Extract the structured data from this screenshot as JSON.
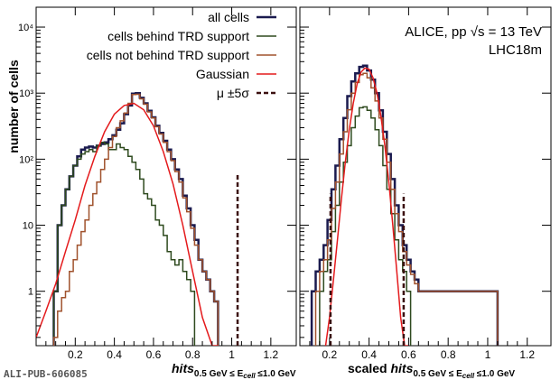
{
  "footer_id": "ALI-PUB-606085",
  "ylabel": "number of cells",
  "legend": [
    {
      "label": "all cells",
      "color": "#1a1a4e",
      "style": "solid",
      "width": 2.5
    },
    {
      "label": "cells behind TRD support",
      "color": "#2e4a1e",
      "style": "solid",
      "width": 1.5
    },
    {
      "label": "cells not behind TRD support",
      "color": "#a0522d",
      "style": "solid",
      "width": 1.5
    },
    {
      "label": "Gaussian",
      "color": "#e41a1c",
      "style": "solid",
      "width": 1.5
    },
    {
      "label": "μ ±5σ",
      "color": "#3b1010",
      "style": "dashed",
      "width": 2.5
    }
  ],
  "experiment_label": "ALICE, pp  √s = 13 TeV",
  "period_label": "LHC18m",
  "xlabel_left": {
    "main": "hits",
    "sub": "0.5 GeV ≤ E",
    "sub2": "cell",
    "sub3": " ≤1.0 GeV"
  },
  "xlabel_right": {
    "prefix": "scaled ",
    "main": "hits",
    "sub": "0.5 GeV ≤ E",
    "sub2": "cell",
    "sub3": " ≤1.0 GeV"
  },
  "y_ticks": [
    "1",
    "10",
    "10²",
    "10³",
    "10⁴"
  ],
  "chart_data": [
    {
      "type": "line",
      "panel": "left",
      "yscale": "log",
      "xlim": [
        0.0,
        1.33
      ],
      "ylim": [
        0.15,
        20000
      ],
      "xticks": [
        "0.2",
        "0.4",
        "0.6",
        "0.8",
        "1",
        "1.2"
      ],
      "xtick_values": [
        0.2,
        0.4,
        0.6,
        0.8,
        1.0,
        1.2
      ],
      "series": [
        {
          "name": "all cells",
          "x": [
            0.1,
            0.12,
            0.14,
            0.16,
            0.18,
            0.2,
            0.22,
            0.24,
            0.26,
            0.28,
            0.3,
            0.32,
            0.34,
            0.36,
            0.38,
            0.4,
            0.42,
            0.44,
            0.46,
            0.48,
            0.5,
            0.52,
            0.54,
            0.56,
            0.58,
            0.6,
            0.62,
            0.64,
            0.66,
            0.68,
            0.7,
            0.72,
            0.74,
            0.76,
            0.78,
            0.8,
            0.82,
            0.84,
            0.86,
            0.88,
            0.9,
            0.92
          ],
          "y": [
            1,
            10,
            20,
            35,
            55,
            80,
            110,
            140,
            150,
            155,
            150,
            160,
            170,
            180,
            200,
            230,
            280,
            350,
            480,
            650,
            980,
            1000,
            850,
            700,
            540,
            430,
            320,
            250,
            190,
            140,
            100,
            70,
            50,
            28,
            18,
            10,
            6,
            3,
            2,
            1.5,
            1,
            0.7
          ]
        },
        {
          "name": "cells behind TRD support",
          "x": [
            0.1,
            0.12,
            0.14,
            0.16,
            0.18,
            0.2,
            0.22,
            0.24,
            0.26,
            0.28,
            0.3,
            0.32,
            0.34,
            0.36,
            0.38,
            0.4,
            0.42,
            0.44,
            0.46,
            0.48,
            0.5,
            0.52,
            0.54,
            0.56,
            0.58,
            0.6,
            0.62,
            0.64,
            0.66,
            0.68,
            0.7,
            0.72,
            0.74,
            0.76,
            0.78,
            0.8
          ],
          "y": [
            1,
            10,
            20,
            35,
            55,
            80,
            100,
            120,
            130,
            140,
            130,
            160,
            180,
            170,
            140,
            140,
            170,
            150,
            140,
            110,
            90,
            70,
            50,
            30,
            25,
            20,
            12,
            10,
            7,
            4,
            3,
            2.5,
            3,
            2,
            1.5,
            1
          ]
        },
        {
          "name": "cells not behind TRD support",
          "x": [
            0.1,
            0.12,
            0.14,
            0.16,
            0.18,
            0.2,
            0.22,
            0.24,
            0.26,
            0.28,
            0.3,
            0.32,
            0.34,
            0.36,
            0.38,
            0.4,
            0.42,
            0.44,
            0.46,
            0.48,
            0.5,
            0.52,
            0.54,
            0.56,
            0.58,
            0.6,
            0.62,
            0.64,
            0.66,
            0.68,
            0.7,
            0.72,
            0.74,
            0.76,
            0.78,
            0.8,
            0.82,
            0.84,
            0.86,
            0.88,
            0.9,
            0.92
          ],
          "y": [
            0.2,
            0.5,
            0.8,
            1,
            2,
            3,
            5,
            8,
            12,
            20,
            30,
            45,
            70,
            100,
            150,
            220,
            300,
            380,
            500,
            700,
            950,
            960,
            820,
            680,
            520,
            420,
            310,
            240,
            180,
            130,
            95,
            65,
            45,
            26,
            16,
            9,
            5,
            3,
            2,
            1.5,
            1,
            0.7
          ]
        },
        {
          "name": "Gaussian",
          "x": [
            0.0,
            0.05,
            0.1,
            0.15,
            0.2,
            0.25,
            0.3,
            0.35,
            0.4,
            0.45,
            0.5,
            0.55,
            0.6,
            0.65,
            0.7,
            0.75,
            0.8,
            0.85,
            0.9,
            0.93
          ],
          "y": [
            0.2,
            0.5,
            1.3,
            4,
            12,
            40,
            110,
            260,
            480,
            650,
            700,
            560,
            320,
            130,
            42,
            10,
            2,
            0.4,
            0.15,
            0.1
          ]
        }
      ],
      "vlines": [
        {
          "name": "μ ±5σ",
          "x": 1.03,
          "ymax": 60
        }
      ]
    },
    {
      "type": "line",
      "panel": "right",
      "yscale": "log",
      "xlim": [
        0.05,
        1.32
      ],
      "ylim": [
        0.15,
        20000
      ],
      "xticks": [
        "0.2",
        "0.4",
        "0.6",
        "0.8",
        "1",
        "1.2"
      ],
      "xtick_values": [
        0.2,
        0.4,
        0.6,
        0.8,
        1.0,
        1.2
      ],
      "series": [
        {
          "name": "all cells",
          "x": [
            0.12,
            0.14,
            0.16,
            0.18,
            0.2,
            0.22,
            0.24,
            0.26,
            0.28,
            0.3,
            0.32,
            0.34,
            0.36,
            0.38,
            0.4,
            0.42,
            0.44,
            0.46,
            0.48,
            0.5,
            0.52,
            0.54,
            0.56,
            0.58,
            0.6,
            0.62,
            0.64,
            0.66,
            0.68,
            0.7,
            1.04
          ],
          "y": [
            1,
            2,
            3,
            5,
            12,
            35,
            80,
            200,
            420,
            900,
            1500,
            2000,
            2500,
            2600,
            2200,
            1600,
            1000,
            550,
            260,
            120,
            50,
            20,
            10,
            5,
            3,
            2,
            1.5,
            1,
            1,
            1,
            1
          ]
        },
        {
          "name": "cells behind TRD support",
          "x": [
            0.16,
            0.18,
            0.2,
            0.22,
            0.24,
            0.26,
            0.28,
            0.3,
            0.32,
            0.34,
            0.36,
            0.38,
            0.4,
            0.42,
            0.44,
            0.46,
            0.48,
            0.5,
            0.52,
            0.54,
            0.56,
            0.58,
            0.6
          ],
          "y": [
            1,
            2,
            3,
            8,
            20,
            45,
            90,
            160,
            300,
            450,
            600,
            620,
            550,
            420,
            280,
            160,
            80,
            35,
            15,
            6,
            3,
            2,
            1
          ]
        },
        {
          "name": "cells not behind TRD support",
          "x": [
            0.14,
            0.16,
            0.18,
            0.2,
            0.22,
            0.24,
            0.26,
            0.28,
            0.3,
            0.32,
            0.34,
            0.36,
            0.38,
            0.4,
            0.42,
            0.44,
            0.46,
            0.48,
            0.5,
            0.52,
            0.54,
            0.56,
            0.58,
            0.6,
            0.62,
            0.64,
            0.66,
            0.68,
            1.04
          ],
          "y": [
            1,
            2,
            3,
            6,
            18,
            45,
            120,
            260,
            560,
            1000,
            1450,
            1900,
            2000,
            1700,
            1200,
            760,
            420,
            200,
            90,
            35,
            15,
            8,
            4,
            2.5,
            1.8,
            1.3,
            1,
            1,
            1
          ]
        },
        {
          "name": "Gaussian",
          "x": [
            0.18,
            0.2,
            0.22,
            0.24,
            0.26,
            0.28,
            0.3,
            0.32,
            0.34,
            0.36,
            0.38,
            0.4,
            0.42,
            0.44,
            0.46,
            0.48,
            0.5,
            0.52,
            0.54,
            0.56,
            0.58,
            0.6
          ],
          "y": [
            0.12,
            0.4,
            1.5,
            6,
            25,
            90,
            280,
            700,
            1400,
            2100,
            2400,
            2300,
            1700,
            1000,
            450,
            160,
            45,
            10,
            2,
            0.4,
            0.15,
            0.1
          ]
        }
      ],
      "vlines": [
        {
          "name": "μ ±5σ",
          "x": 0.205,
          "ymax": 30
        },
        {
          "name": "μ ±5σ",
          "x": 0.575,
          "ymax": 30
        }
      ]
    }
  ]
}
